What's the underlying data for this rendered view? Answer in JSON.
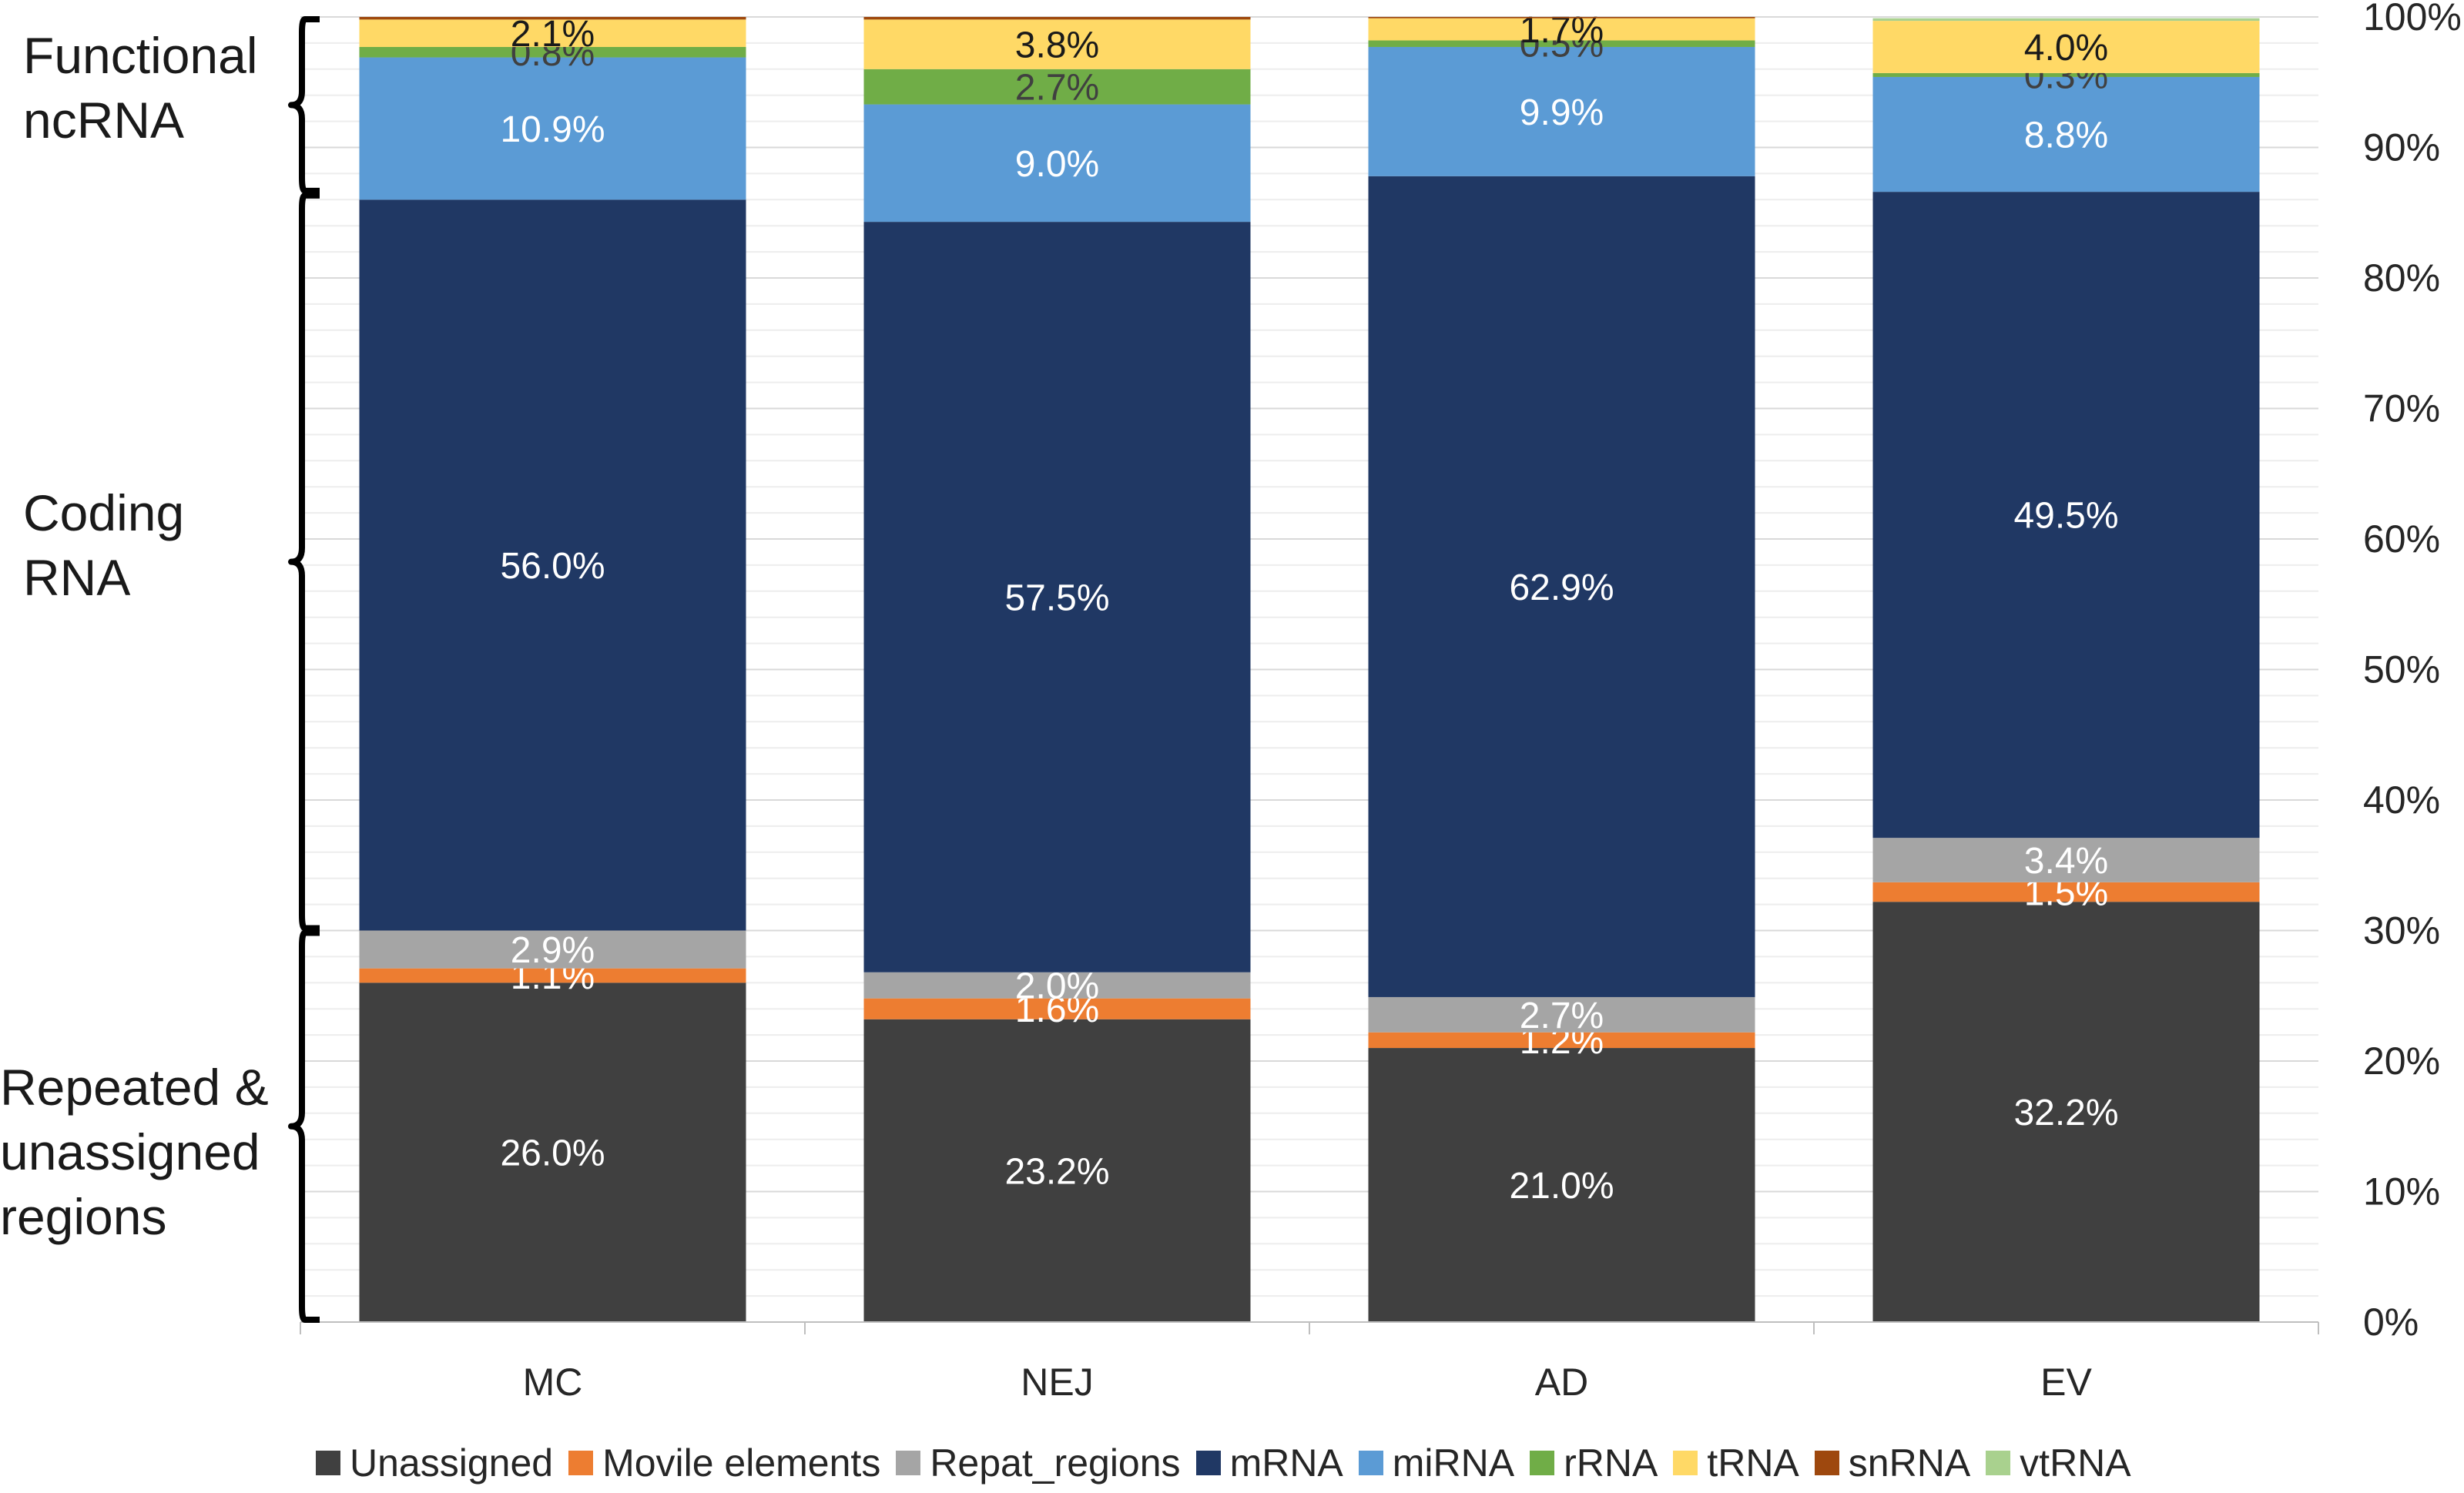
{
  "chart_data": {
    "type": "bar",
    "stacked": true,
    "title": "",
    "xlabel": "",
    "ylabel": "",
    "ylim": [
      0,
      100
    ],
    "y_axis_position": "right",
    "yticks": [
      "0%",
      "10%",
      "20%",
      "30%",
      "40%",
      "50%",
      "60%",
      "70%",
      "80%",
      "90%",
      "100%"
    ],
    "categories": [
      "MC",
      "NEJ",
      "AD",
      "EV"
    ],
    "series": [
      {
        "name": "Unassigned",
        "color": "#404040",
        "values": [
          26.0,
          23.2,
          21.0,
          32.2
        ],
        "labels": [
          "26.0%",
          "23.2%",
          "21.0%",
          "32.2%"
        ],
        "label_color": "#ffffff"
      },
      {
        "name": "Movile elements",
        "color": "#ed7d31",
        "values": [
          1.1,
          1.6,
          1.2,
          1.5
        ],
        "labels": [
          "1.1%",
          "1.6%",
          "1.2%",
          "1.5%"
        ],
        "label_color": "#ffffff"
      },
      {
        "name": "Repat_regions",
        "color": "#a5a5a5",
        "values": [
          2.9,
          2.0,
          2.7,
          3.4
        ],
        "labels": [
          "2.9%",
          "2.0%",
          "2.7%",
          "3.4%"
        ],
        "label_color": "#ffffff"
      },
      {
        "name": "mRNA",
        "color": "#203864",
        "values": [
          56.0,
          57.5,
          62.9,
          49.5
        ],
        "labels": [
          "56.0%",
          "57.5%",
          "62.9%",
          "49.5%"
        ],
        "label_color": "#ffffff"
      },
      {
        "name": "miRNA",
        "color": "#5b9bd5",
        "values": [
          10.9,
          9.0,
          9.9,
          8.8
        ],
        "labels": [
          "10.9%",
          "9.0%",
          "9.9%",
          "8.8%"
        ],
        "label_color": "#ffffff"
      },
      {
        "name": "rRNA",
        "color": "#70ad47",
        "values": [
          0.8,
          2.7,
          0.5,
          0.3
        ],
        "labels": [
          "0.8%",
          "2.7%",
          "0.5%",
          "0.3%"
        ],
        "label_color": "#404040"
      },
      {
        "name": "tRNA",
        "color": "#ffd966",
        "values": [
          2.1,
          3.8,
          1.7,
          4.0
        ],
        "labels": [
          "2.1%",
          "3.8%",
          "1.7%",
          "4.0%"
        ],
        "label_color": "#1a1a1a"
      },
      {
        "name": "snRNA",
        "color": "#9e480e",
        "values": [
          0.2,
          0.2,
          0.1,
          0.0
        ],
        "labels": [
          "",
          "",
          "",
          ""
        ],
        "label_color": "#ffffff"
      },
      {
        "name": "vtRNA",
        "color": "#a9d18e",
        "values": [
          0.0,
          0.0,
          0.0,
          0.2
        ],
        "labels": [
          "",
          "",
          "",
          ""
        ],
        "label_color": "#ffffff"
      }
    ],
    "group_labels": [
      {
        "lines": [
          "Functional",
          "ncRNA"
        ],
        "range": [
          86.5,
          100
        ]
      },
      {
        "lines": [
          "Coding",
          "RNA"
        ],
        "range": [
          30,
          86.5
        ]
      },
      {
        "lines": [
          "Repeated &",
          "unassigned",
          "regions"
        ],
        "range": [
          0,
          30
        ]
      }
    ],
    "legend_position": "bottom"
  }
}
